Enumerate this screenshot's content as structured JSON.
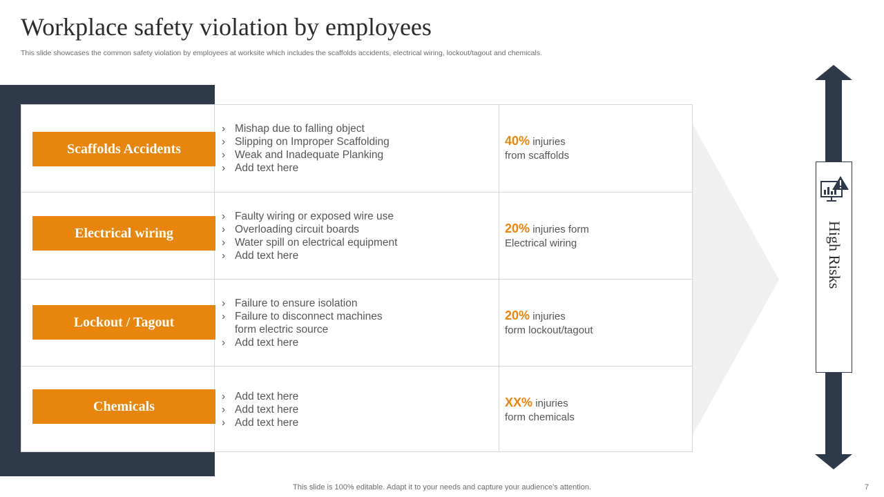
{
  "title": "Workplace safety violation by employees",
  "subtitle": "This slide showcases the common safety violation by employees at worksite which includes the scaffolds accidents, electrical wiring, lockout/tagout and chemicals.",
  "rows": [
    {
      "label": "Scaffolds Accidents",
      "bullets": [
        "Mishap due to falling object",
        "Slipping on Improper Scaffolding",
        "Weak and Inadequate Planking",
        "Add text here"
      ],
      "stat_pct": "40%",
      "stat_text": "injuries",
      "stat_line2": "from scaffolds"
    },
    {
      "label": "Electrical wiring",
      "bullets": [
        "Faulty wiring or exposed wire use",
        "Overloading circuit boards",
        "Water spill on electrical equipment",
        "Add text here"
      ],
      "stat_pct": "20%",
      "stat_text": "injuries form",
      "stat_line2": "Electrical wiring"
    },
    {
      "label": "Lockout / Tagout",
      "bullets": [
        "Failure to ensure isolation",
        "Failure to disconnect machines form electric source",
        "Add text here"
      ],
      "stat_pct": "20%",
      "stat_text": "injuries",
      "stat_line2": "form lockout/tagout"
    },
    {
      "label": "Chemicals",
      "bullets": [
        "Add text here",
        "Add text here",
        "Add text here"
      ],
      "stat_pct": "XX%",
      "stat_text": "injuries",
      "stat_line2": "form chemicals"
    }
  ],
  "risk_label": "High Risks",
  "risk_icon": "warning-monitor-chart-icon",
  "footer": "This slide is 100% editable. Adapt it to your needs and capture your audience's attention.",
  "page_number": "7",
  "colors": {
    "accent": "#e8850c",
    "dark": "#2e3a4a"
  }
}
